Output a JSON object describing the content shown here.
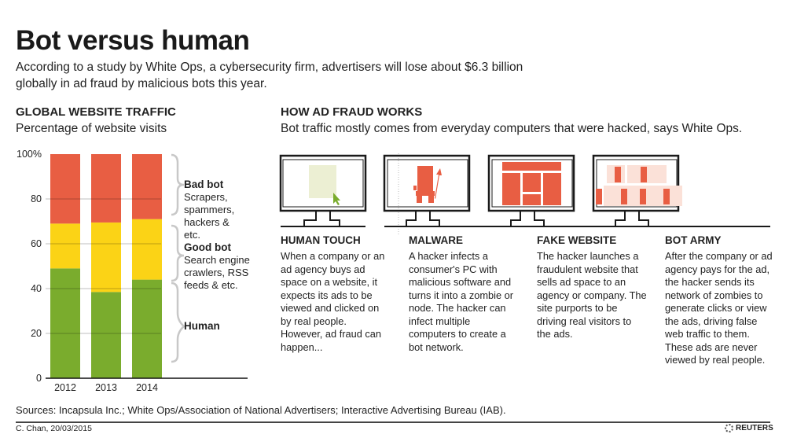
{
  "title": "Bot versus human",
  "intro": "According to a study by White Ops, a cybersecurity firm, advertisers will lose about $6.3 billion globally in ad fraud by malicious bots this year.",
  "traffic": {
    "heading": "GLOBAL WEBSITE TRAFFIC",
    "subheading": "Percentage of website visits"
  },
  "legend": [
    {
      "label": "Bad bot",
      "desc": "Scrapers, spammers, hackers & etc."
    },
    {
      "label": "Good bot",
      "desc": "Search engine crawlers, RSS feeds & etc."
    },
    {
      "label": "Human",
      "desc": ""
    }
  ],
  "fraud": {
    "heading": "HOW AD FRAUD WORKS",
    "subheading": "Bot traffic mostly comes from everyday computers that were hacked, says White Ops.",
    "steps": [
      {
        "title": "HUMAN TOUCH",
        "text": "When a company or an ad agency buys ad space on a website, it expects its ads to be viewed and clicked on by real people. However, ad fraud can happen..."
      },
      {
        "title": "MALWARE",
        "text": "A hacker infects a consumer's PC with malicious software and turns it into a zombie or node. The hacker can infect multiple computers to create a bot network."
      },
      {
        "title": "FAKE WEBSITE",
        "text": "The hacker launches a fraudulent website that sells ad space to an agency or company. The site purports to be driving real visitors to the ads."
      },
      {
        "title": "BOT ARMY",
        "text": "After the company or ad agency pays for the ad, the hacker sends its network of zombies to generate clicks or view the ads, driving false web traffic to them. These ads are never viewed by real people."
      }
    ]
  },
  "sources": "Sources: Incapsula Inc.; White Ops/Association of National Advertisers; Interactive Advertising Bureau (IAB).",
  "credit": "C. Chan, 20/03/2015",
  "logo": "REUTERS",
  "chart_data": {
    "type": "bar",
    "stacked": true,
    "title": "GLOBAL WEBSITE TRAFFIC",
    "ylabel": "Percentage of website visits",
    "categories": [
      "2012",
      "2013",
      "2014"
    ],
    "series": [
      {
        "name": "Human",
        "values": [
          49,
          38.5,
          44
        ],
        "color": "#7aac2d"
      },
      {
        "name": "Good bot",
        "values": [
          20,
          31,
          27
        ],
        "color": "#fbd316"
      },
      {
        "name": "Bad bot",
        "values": [
          31,
          30.5,
          29
        ],
        "color": "#e85e43"
      }
    ],
    "ylim": [
      0,
      100
    ],
    "yticks": [
      0,
      20,
      40,
      60,
      80,
      100
    ],
    "ytick_labels": [
      "0",
      "20",
      "40",
      "60",
      "80",
      "100%"
    ],
    "grid": true,
    "legend": "right"
  }
}
